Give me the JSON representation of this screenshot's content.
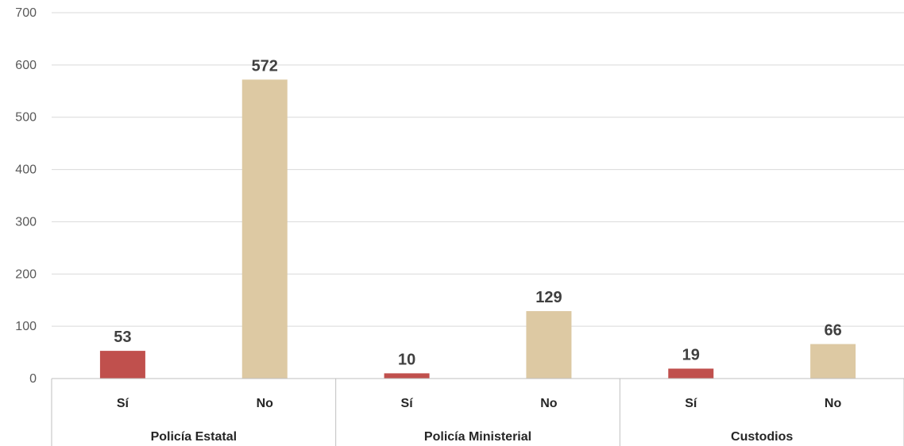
{
  "chart_data": {
    "type": "bar",
    "groups": [
      "Policía Estatal",
      "Policía Ministerial",
      "Custodios"
    ],
    "subcategories": [
      "Sí",
      "No"
    ],
    "series": [
      {
        "values": [
          53,
          10,
          19
        ],
        "color": "#c0504d"
      },
      {
        "values": [
          572,
          129,
          66
        ],
        "color": "#ddc9a3"
      }
    ],
    "ylim": [
      0,
      700
    ],
    "yticks": [
      0,
      100,
      200,
      300,
      400,
      500,
      600,
      700
    ],
    "grid": true,
    "data_labels": true,
    "legend": "none"
  }
}
